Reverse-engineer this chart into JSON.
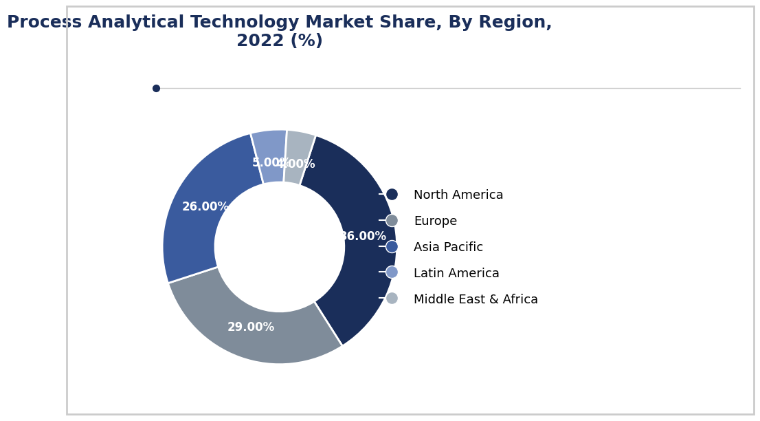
{
  "title": "Process Analytical Technology Market Share, By Region,\n2022 (%)",
  "title_fontsize": 18,
  "slices": [
    36.0,
    29.0,
    26.0,
    5.0,
    4.0
  ],
  "labels": [
    "36.00%",
    "29.00%",
    "26.00%",
    "5.00%",
    "4.00%"
  ],
  "legend_labels": [
    "North America",
    "Europe",
    "Asia Pacific",
    "Latin America",
    "Middle East & Africa"
  ],
  "colors": [
    "#1a2e5a",
    "#7f8c9a",
    "#3a5b9e",
    "#8098c8",
    "#a8b4c0"
  ],
  "startangle": 72,
  "background_color": "#ffffff",
  "border_color": "#cccccc",
  "text_color": "#ffffff",
  "label_fontsize": 12,
  "legend_fontsize": 13
}
